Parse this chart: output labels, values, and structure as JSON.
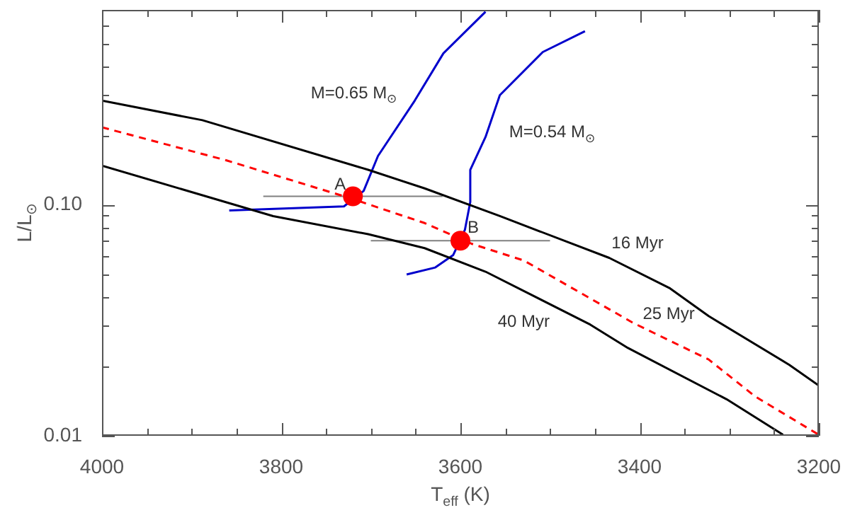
{
  "chart_data": {
    "type": "line",
    "xlabel": "T$_{eff}$ (K)",
    "ylabel": "L/L$_{⊙}$",
    "log": "y",
    "grid": false,
    "legend": false,
    "marker": "none",
    "xlim": [
      4000,
      3200
    ],
    "xticks": [
      4000,
      {
        "value": 3950,
        "label": null
      },
      {
        "value": 3900,
        "label": null
      },
      {
        "value": 3850,
        "label": null
      },
      3800,
      {
        "value": 3750,
        "label": null
      },
      {
        "value": 3700,
        "label": null
      },
      {
        "value": 3650,
        "label": null
      },
      3600,
      {
        "value": 3550,
        "label": null
      },
      {
        "value": 3500,
        "label": null
      },
      {
        "value": 3450,
        "label": null
      },
      3400,
      {
        "value": 3350,
        "label": null
      },
      {
        "value": 3300,
        "label": null
      },
      {
        "value": 3250,
        "label": null
      },
      3200
    ],
    "ylim": [
      0.01,
      0.7
    ],
    "yticks": [
      0.01,
      {
        "value": 0.02,
        "label": null
      },
      {
        "value": 0.03,
        "label": null
      },
      {
        "value": 0.04,
        "label": null
      },
      {
        "value": 0.05,
        "label": null
      },
      {
        "value": 0.06,
        "label": null
      },
      {
        "value": 0.07,
        "label": null
      },
      {
        "value": 0.08,
        "label": null
      },
      {
        "value": 0.09,
        "label": null
      },
      {
        "value": 0.1,
        "label": "0.10"
      },
      {
        "value": 0.2,
        "label": null
      },
      {
        "value": 0.3,
        "label": null
      },
      {
        "value": 0.4,
        "label": null
      },
      {
        "value": 0.5,
        "label": null
      },
      {
        "value": 0.6,
        "label": null
      }
    ],
    "series": [
      {
        "name": "16 Myr",
        "color": "#000000",
        "line_style": "solid",
        "x": [
          4000,
          3888,
          3703,
          3640,
          3556,
          3434,
          3366,
          3323,
          3233,
          3200
        ],
        "values": [
          0.283,
          0.233,
          0.142,
          0.118,
          0.0895,
          0.059,
          0.0435,
          0.033,
          0.0203,
          0.0165
        ]
      },
      {
        "name": "25 Myr",
        "color": "#ff0000",
        "line_style": "dashed",
        "x": [
          4000,
          3861,
          3723,
          3640,
          3587,
          3529,
          3407,
          3323,
          3271,
          3200
        ],
        "values": [
          0.217,
          0.156,
          0.107,
          0.0835,
          0.0678,
          0.0574,
          0.0308,
          0.0214,
          0.0148,
          0.0101
        ]
      },
      {
        "name": "40 Myr",
        "color": "#000000",
        "line_style": "solid",
        "x": [
          4000,
          3809,
          3703,
          3640,
          3572,
          3455,
          3413,
          3303,
          3240
        ],
        "values": [
          0.148,
          0.0895,
          0.0747,
          0.065,
          0.0514,
          0.0303,
          0.024,
          0.0144,
          0.0101
        ]
      },
      {
        "name": "M=0.65 M$_{⊙}$",
        "color": "#0000cc",
        "line_style": "solid",
        "x": [
          3858,
          3730,
          3708,
          3692,
          3651,
          3619,
          3572
        ],
        "values": [
          0.0946,
          0.0986,
          0.115,
          0.163,
          0.283,
          0.454,
          0.687
        ]
      },
      {
        "name": "M=0.54 M$_{⊙}$",
        "color": "#0000cc",
        "line_style": "solid",
        "x": [
          3461,
          3508,
          3556,
          3572,
          3589,
          3589,
          3595,
          3608,
          3628,
          3660
        ],
        "values": [
          0.566,
          0.46,
          0.299,
          0.197,
          0.142,
          0.103,
          0.078,
          0.0607,
          0.0536,
          0.05
        ]
      },
      {
        "name": "A",
        "type": "scatter",
        "color": "#ff0000",
        "marker": "circle",
        "x": [
          3720
        ],
        "values": [
          0.109
        ],
        "xerrors": [
          100
        ]
      },
      {
        "name": "B",
        "type": "scatter",
        "color": "#ff0000",
        "marker": "circle",
        "x": [
          3600
        ],
        "values": [
          0.07
        ],
        "xerrors": [
          100
        ]
      }
    ]
  }
}
